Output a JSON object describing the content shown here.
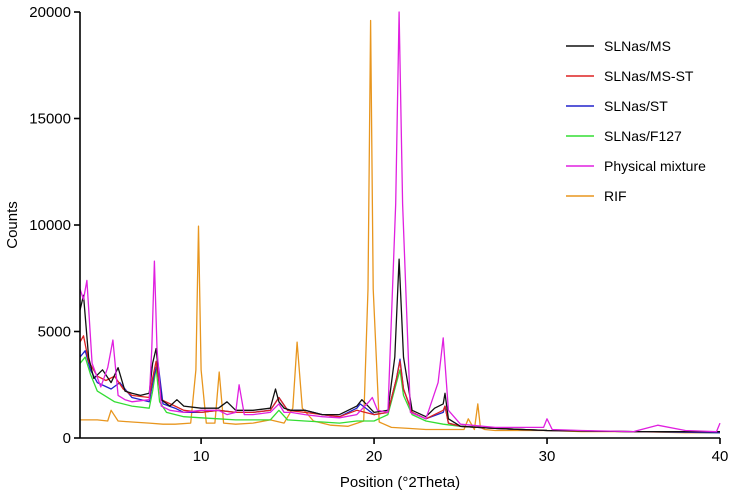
{
  "chart_data": {
    "type": "line",
    "title": "",
    "xlabel": "Position (°2Theta)",
    "ylabel": "Counts",
    "xlim": [
      3,
      40
    ],
    "ylim": [
      0,
      20000
    ],
    "x_ticks": [
      10,
      20,
      30,
      40
    ],
    "y_ticks": [
      0,
      5000,
      10000,
      15000,
      20000
    ],
    "x_tick_labels": [
      "10",
      "20",
      "30",
      "40"
    ],
    "y_tick_labels": [
      "0",
      "5000",
      "10000",
      "15000",
      "20000"
    ],
    "grid": false,
    "legend_position": "top-right",
    "series": [
      {
        "name": "RIF",
        "color": "#e8961e",
        "x": [
          3,
          4,
          4.6,
          4.8,
          5.2,
          6,
          7,
          7.8,
          8.5,
          9.4,
          9.7,
          9.85,
          10.0,
          10.3,
          10.8,
          11.05,
          11.3,
          12,
          13,
          14,
          14.8,
          15.3,
          15.55,
          15.85,
          16.5,
          17.5,
          18.5,
          19.4,
          19.65,
          19.8,
          19.95,
          20.3,
          21,
          22,
          23,
          24,
          25.2,
          25.45,
          25.8,
          26.0,
          26.15,
          26.4,
          27,
          28,
          30,
          32,
          35,
          38,
          40
        ],
        "y": [
          850,
          850,
          800,
          1300,
          800,
          750,
          700,
          650,
          650,
          700,
          3200,
          9950,
          3200,
          700,
          700,
          3100,
          700,
          650,
          700,
          850,
          700,
          1400,
          4500,
          1400,
          800,
          600,
          550,
          800,
          7000,
          19600,
          7000,
          750,
          500,
          450,
          400,
          400,
          400,
          900,
          400,
          1600,
          500,
          400,
          350,
          350,
          350,
          300,
          300,
          250,
          250
        ]
      },
      {
        "name": "SLNas/F127",
        "color": "#33dd33",
        "x": [
          3,
          3.3,
          3.6,
          4,
          5,
          6,
          7,
          7.2,
          7.4,
          7.6,
          8,
          9,
          10,
          11,
          12,
          13,
          14,
          14.5,
          15,
          16,
          17,
          18,
          19,
          20,
          20.8,
          21.3,
          21.5,
          21.7,
          22.2,
          23,
          24,
          25,
          27,
          30,
          35,
          40
        ],
        "y": [
          3500,
          3800,
          3000,
          2200,
          1700,
          1500,
          1400,
          2200,
          3300,
          1700,
          1200,
          1000,
          950,
          900,
          850,
          850,
          850,
          1300,
          850,
          800,
          750,
          700,
          800,
          800,
          1100,
          2600,
          3200,
          2000,
          1100,
          800,
          650,
          550,
          450,
          350,
          300,
          250
        ]
      },
      {
        "name": "SLNas/ST",
        "color": "#2222cc",
        "x": [
          3,
          3.3,
          3.6,
          4,
          4.8,
          5.3,
          6,
          7,
          7.25,
          7.5,
          7.8,
          8.5,
          9,
          10,
          11,
          12,
          13,
          14,
          14.5,
          15,
          16,
          17,
          18,
          19,
          19.2,
          20,
          20.8,
          21.3,
          21.5,
          21.7,
          22.2,
          23,
          24,
          24.1,
          24.3,
          25,
          27,
          30,
          35,
          40
        ],
        "y": [
          3800,
          4100,
          3200,
          2600,
          2300,
          2600,
          1900,
          1700,
          2800,
          3600,
          1600,
          1400,
          1200,
          1200,
          1300,
          1200,
          1200,
          1300,
          1900,
          1300,
          1300,
          1100,
          1000,
          1400,
          1600,
          1100,
          1200,
          2800,
          3700,
          2300,
          1200,
          900,
          1200,
          1500,
          700,
          550,
          450,
          350,
          300,
          250
        ]
      },
      {
        "name": "SLNas/MS-ST",
        "color": "#dd2222",
        "x": [
          3,
          3.2,
          3.5,
          4,
          4.5,
          5,
          5.5,
          6,
          7,
          7.2,
          7.4,
          7.7,
          8.5,
          9,
          10,
          11,
          12,
          13,
          14,
          14.5,
          15,
          16,
          17,
          18,
          19,
          20,
          20.8,
          21.3,
          21.5,
          21.7,
          22.2,
          23,
          24,
          24.1,
          24.3,
          25,
          27,
          30,
          35,
          40
        ],
        "y": [
          4500,
          4800,
          3600,
          2900,
          2700,
          2900,
          2300,
          2000,
          1900,
          2800,
          3600,
          1800,
          1500,
          1300,
          1200,
          1300,
          1200,
          1200,
          1300,
          1900,
          1300,
          1200,
          1100,
          1000,
          1300,
          1100,
          1200,
          2800,
          3600,
          2300,
          1200,
          900,
          1300,
          1500,
          700,
          550,
          450,
          350,
          300,
          300
        ]
      },
      {
        "name": "SLNas/MS",
        "color": "#111111",
        "x": [
          3,
          3.2,
          3.5,
          3.8,
          4.3,
          4.8,
          5.2,
          5.6,
          6,
          6.5,
          7,
          7.2,
          7.4,
          7.7,
          8.2,
          8.6,
          9,
          10,
          11,
          11.5,
          12,
          13,
          14,
          14.3,
          14.5,
          14.8,
          15.2,
          16,
          17,
          18,
          19,
          19.3,
          20,
          20.8,
          21.2,
          21.45,
          21.7,
          22.2,
          23,
          23.5,
          24,
          24.1,
          24.3,
          25,
          27,
          30,
          35,
          40
        ],
        "y": [
          6000,
          6700,
          3800,
          2800,
          3200,
          2600,
          3300,
          2200,
          2100,
          2000,
          2100,
          3500,
          4200,
          1800,
          1500,
          1800,
          1500,
          1400,
          1400,
          1700,
          1300,
          1300,
          1400,
          2300,
          1700,
          1400,
          1300,
          1300,
          1100,
          1100,
          1500,
          1800,
          1200,
          1300,
          3800,
          8400,
          3800,
          1300,
          1000,
          1400,
          1600,
          2100,
          900,
          550,
          450,
          350,
          300,
          300
        ]
      },
      {
        "name": "Physical mixture",
        "color": "#e020e0",
        "x": [
          3,
          3.2,
          3.4,
          3.7,
          4.2,
          4.6,
          4.9,
          5.2,
          5.6,
          6,
          7,
          7.15,
          7.3,
          7.45,
          7.7,
          8.2,
          9,
          10,
          11,
          11.5,
          12,
          12.2,
          12.5,
          13,
          14,
          14.5,
          14.8,
          15.2,
          16,
          17,
          18,
          19,
          19.7,
          19.9,
          20.2,
          20.8,
          21.25,
          21.45,
          21.65,
          22.1,
          23,
          23.7,
          24.0,
          24.3,
          25,
          27,
          29.8,
          30.0,
          30.3,
          32,
          35,
          36.4,
          38,
          39.8,
          40
        ],
        "y": [
          7000,
          6500,
          7400,
          3500,
          2400,
          3300,
          4600,
          2000,
          1800,
          1700,
          1800,
          4200,
          8300,
          4200,
          1500,
          1300,
          1200,
          1300,
          1300,
          1100,
          1200,
          2500,
          1100,
          1100,
          1200,
          1600,
          1200,
          1200,
          1100,
          1000,
          950,
          1100,
          1700,
          1900,
          1300,
          1200,
          11000,
          20000,
          11000,
          1200,
          900,
          2600,
          4700,
          1300,
          650,
          500,
          500,
          900,
          400,
          350,
          300,
          600,
          350,
          300,
          700
        ]
      }
    ]
  }
}
